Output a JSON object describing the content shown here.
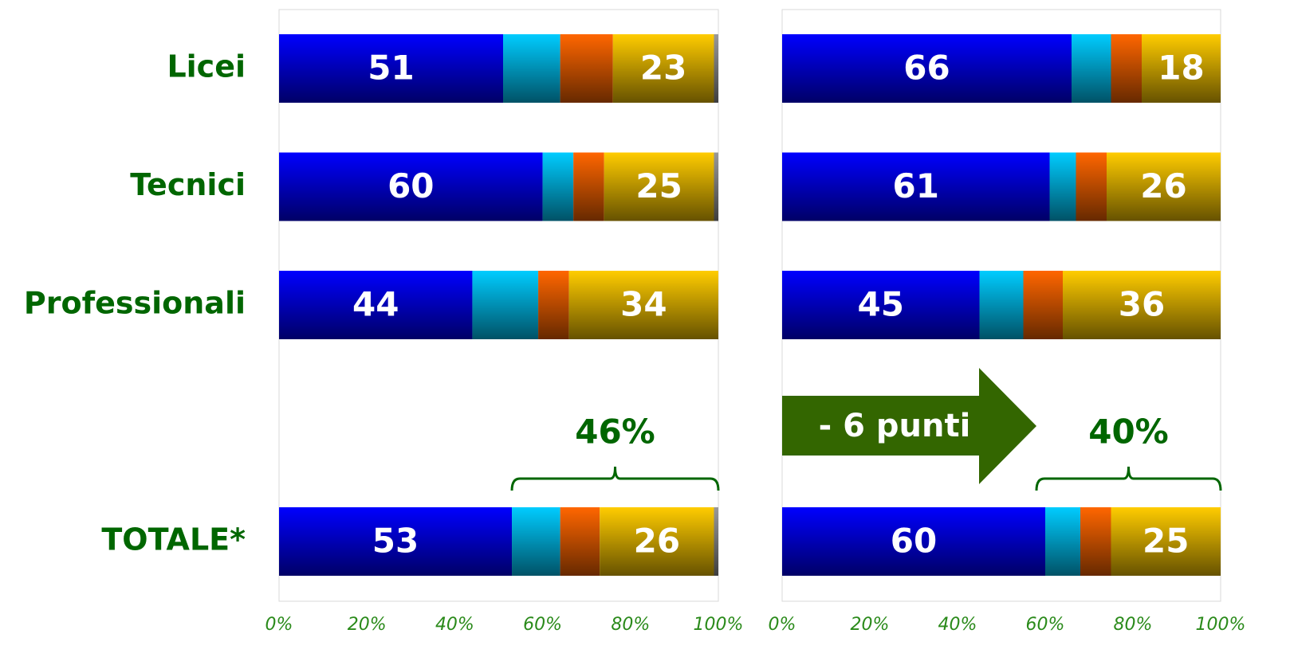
{
  "chart_data": [
    {
      "type": "stacked_bar_h",
      "categories": [
        "Licei",
        "Tecnici",
        "Professionali",
        null,
        "TOTALE*"
      ],
      "series": [
        {
          "color": "#0000ff",
          "show_labels": true,
          "values": [
            51,
            60,
            44,
            null,
            53
          ]
        },
        {
          "color": "#00ccff",
          "show_labels": false,
          "values": [
            13,
            7,
            15,
            null,
            11
          ]
        },
        {
          "color": "#ff6600",
          "show_labels": false,
          "values": [
            12,
            7,
            7,
            null,
            9
          ]
        },
        {
          "color": "#ffcc00",
          "show_labels": true,
          "values": [
            23,
            25,
            34,
            null,
            26
          ]
        },
        {
          "color": "#999999",
          "show_labels": false,
          "values": [
            1,
            1,
            0,
            null,
            1
          ]
        }
      ],
      "xlim": [
        0,
        100
      ],
      "xticks": [
        {
          "value": 0,
          "label": "0%"
        },
        {
          "value": 20,
          "label": "20%"
        },
        {
          "value": 40,
          "label": "40%"
        },
        {
          "value": 60,
          "label": "60%"
        },
        {
          "value": 80,
          "label": "80%"
        },
        {
          "value": 100,
          "label": "100%"
        }
      ],
      "annotations": [
        {
          "text": "46%",
          "from": 53,
          "to": 100
        }
      ]
    },
    {
      "type": "stacked_bar_h",
      "series": [
        {
          "color": "#0000ff",
          "show_labels": true,
          "values": [
            66,
            61,
            45,
            null,
            60
          ]
        },
        {
          "color": "#00ccff",
          "show_labels": false,
          "values": [
            9,
            6,
            10,
            null,
            8
          ]
        },
        {
          "color": "#ff6600",
          "show_labels": false,
          "values": [
            7,
            7,
            9,
            null,
            7
          ]
        },
        {
          "color": "#ffcc00",
          "show_labels": true,
          "values": [
            18,
            26,
            36,
            null,
            25
          ]
        },
        {
          "color": "#999999",
          "show_labels": false,
          "values": [
            0,
            0,
            0,
            null,
            0
          ]
        }
      ],
      "xlim": [
        0,
        100
      ],
      "xticks": [
        {
          "value": 0,
          "label": "0%"
        },
        {
          "value": 20,
          "label": "20%"
        },
        {
          "value": 40,
          "label": "40%"
        },
        {
          "value": 60,
          "label": "60%"
        },
        {
          "value": 80,
          "label": "80%"
        },
        {
          "value": 100,
          "label": "100%"
        }
      ],
      "annotations": [
        {
          "text": "40%",
          "from": 58,
          "to": 100
        }
      ],
      "arrow_text": "- 6 punti"
    }
  ]
}
